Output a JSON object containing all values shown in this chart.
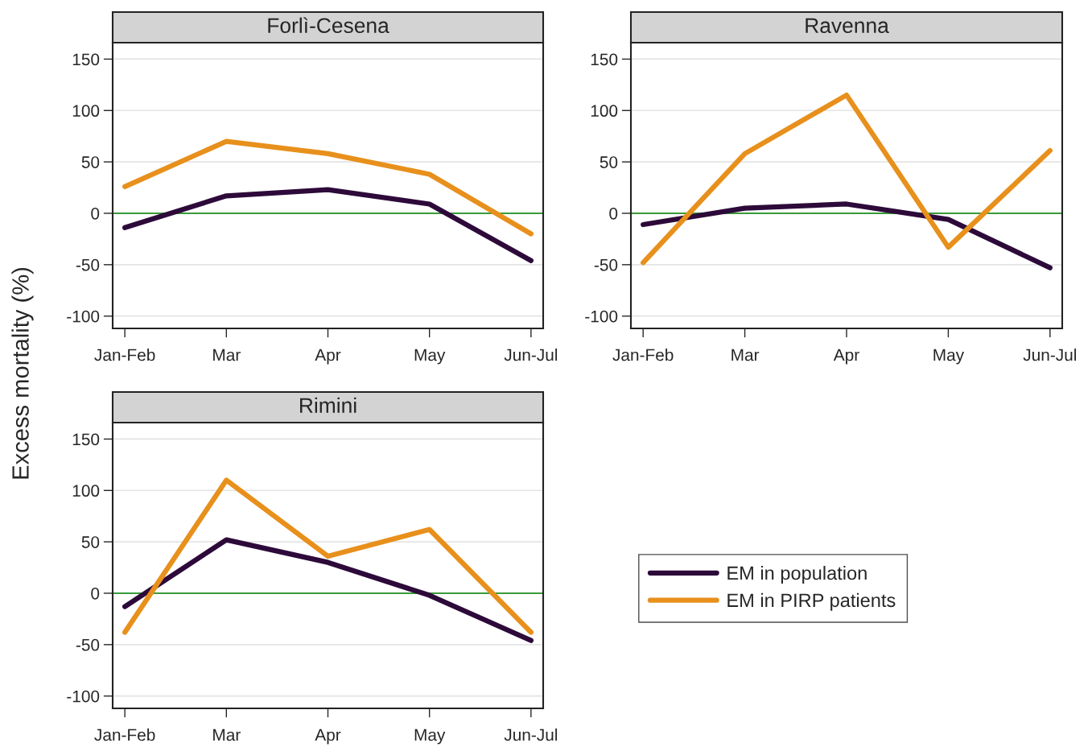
{
  "chart_data": [
    {
      "type": "line",
      "title": "Forlì-Cesena",
      "ylabel": "Excess mortality (%)",
      "categories": [
        "Jan-Feb",
        "Mar",
        "Apr",
        "May",
        "Jun-Jul"
      ],
      "ylim": [
        -112,
        166
      ],
      "yticks": [
        -100,
        -50,
        0,
        50,
        100,
        150
      ],
      "grid": "y",
      "ref_lines": [
        {
          "axis": "y",
          "value": 0,
          "color": "#3a9a3a"
        }
      ],
      "series": [
        {
          "color": "#2d0a3a",
          "values": [
            -14,
            17,
            23,
            9,
            -46
          ]
        },
        {
          "color": "#e8901c",
          "values": [
            26,
            70,
            58,
            38,
            -20
          ]
        }
      ]
    },
    {
      "type": "line",
      "title": "Ravenna",
      "categories": [
        "Jan-Feb",
        "Mar",
        "Apr",
        "May",
        "Jun-Jul"
      ],
      "ylim": [
        -112,
        166
      ],
      "yticks": [
        -100,
        -50,
        0,
        50,
        100,
        150
      ],
      "grid": "y",
      "ref_lines": [
        {
          "axis": "y",
          "value": 0,
          "color": "#3a9a3a"
        }
      ],
      "series": [
        {
          "color": "#2d0a3a",
          "values": [
            -11,
            5,
            9,
            -6,
            -53
          ]
        },
        {
          "color": "#e8901c",
          "values": [
            -48,
            58,
            115,
            -33,
            61
          ]
        }
      ]
    },
    {
      "type": "line",
      "title": "Rimini",
      "categories": [
        "Jan-Feb",
        "Mar",
        "Apr",
        "May",
        "Jun-Jul"
      ],
      "ylim": [
        -112,
        166
      ],
      "yticks": [
        -100,
        -50,
        0,
        50,
        100,
        150
      ],
      "grid": "y",
      "legend": "right",
      "ref_lines": [
        {
          "axis": "y",
          "value": 0,
          "color": "#3a9a3a"
        }
      ],
      "series": [
        {
          "name": "EM in population",
          "color": "#2d0a3a",
          "values": [
            -13,
            52,
            30,
            -2,
            -46
          ]
        },
        {
          "name": "EM in PIRP patients",
          "color": "#e8901c",
          "values": [
            -38,
            110,
            36,
            62,
            -38
          ]
        }
      ]
    }
  ]
}
